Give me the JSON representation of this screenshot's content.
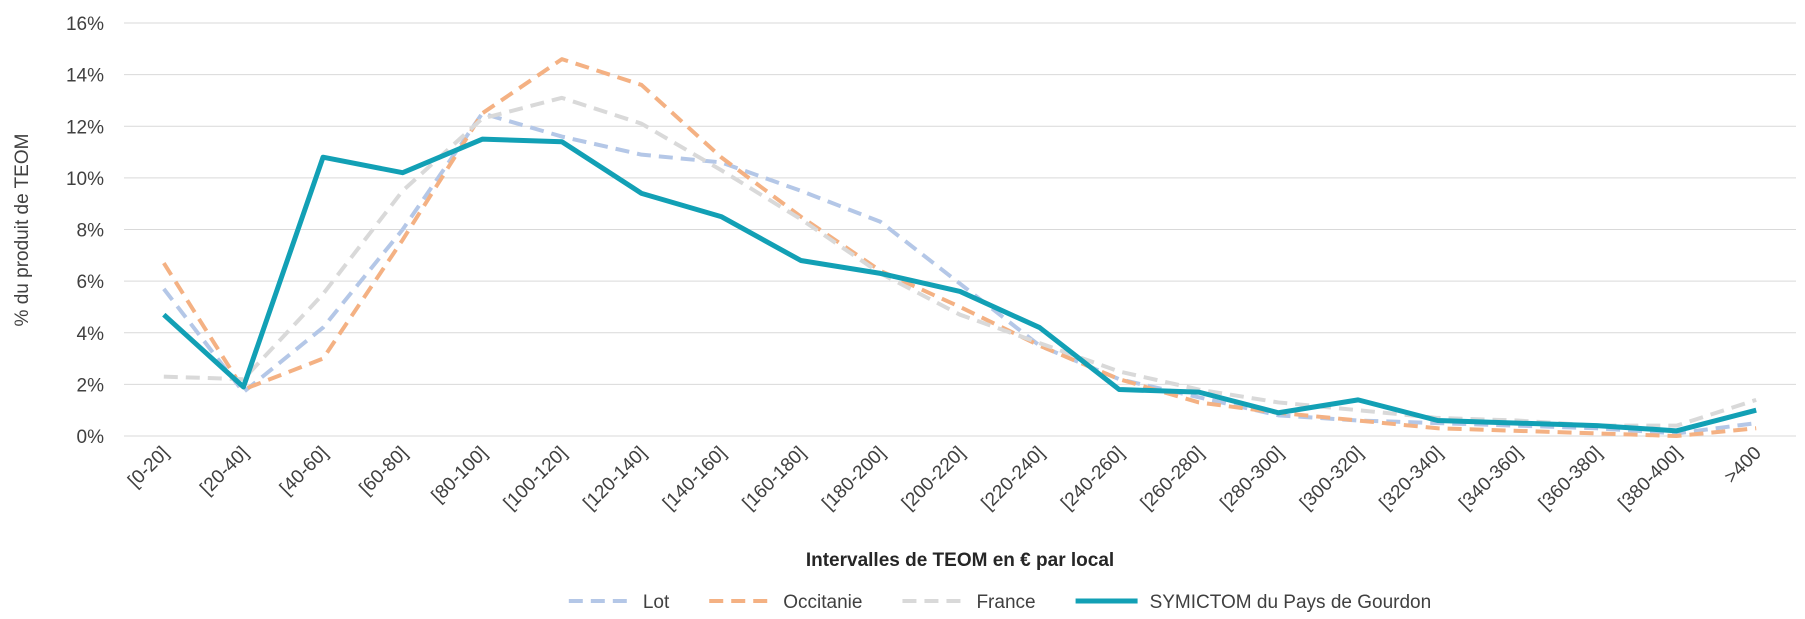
{
  "chart_data": {
    "type": "line",
    "x_label": "Intervalles de TEOM en € par local",
    "y_label": "% du produit de TEOM",
    "categories": [
      "[0-20]",
      "[20-40]",
      "[40-60]",
      "[60-80]",
      "[80-100]",
      "[100-120]",
      "[120-140]",
      "[140-160]",
      "[160-180]",
      "[180-200]",
      "[200-220]",
      "[220-240]",
      "[240-260]",
      "[260-280]",
      "[280-300]",
      "[300-320]",
      "[320-340]",
      "[340-360]",
      "[360-380]",
      "[380-400]",
      ">400"
    ],
    "series": [
      {
        "name": "Lot",
        "color": "#b4c7e7",
        "style": "dashed",
        "values": [
          5.7,
          1.7,
          4.2,
          8.0,
          12.5,
          11.6,
          10.9,
          10.6,
          9.5,
          8.3,
          5.9,
          3.5,
          2.2,
          1.5,
          0.8,
          0.6,
          0.5,
          0.4,
          0.3,
          0.1,
          0.5
        ]
      },
      {
        "name": "Occitanie",
        "color": "#f4b183",
        "style": "dashed",
        "values": [
          6.7,
          1.8,
          3.0,
          7.6,
          12.5,
          14.6,
          13.6,
          10.8,
          8.5,
          6.4,
          5.0,
          3.5,
          2.2,
          1.3,
          0.9,
          0.6,
          0.3,
          0.2,
          0.1,
          0.0,
          0.3
        ]
      },
      {
        "name": "France",
        "color": "#d9d9d9",
        "style": "dashed",
        "values": [
          2.3,
          2.2,
          5.5,
          9.5,
          12.3,
          13.1,
          12.1,
          10.3,
          8.4,
          6.3,
          4.7,
          3.6,
          2.5,
          1.8,
          1.3,
          1.0,
          0.7,
          0.6,
          0.4,
          0.4,
          1.4
        ]
      },
      {
        "name": "SYMICTOM du Pays de Gourdon",
        "color": "#12a0b5",
        "style": "solid",
        "values": [
          4.7,
          1.9,
          10.8,
          10.2,
          11.5,
          11.4,
          9.4,
          8.5,
          6.8,
          6.3,
          5.6,
          4.2,
          1.8,
          1.7,
          0.9,
          1.4,
          0.6,
          0.5,
          0.4,
          0.2,
          1.0
        ]
      }
    ],
    "ylim": [
      0,
      16
    ],
    "yticks": [
      {
        "value": 0,
        "label": "0%"
      },
      {
        "value": 2,
        "label": "2%"
      },
      {
        "value": 4,
        "label": "4%"
      },
      {
        "value": 6,
        "label": "6%"
      },
      {
        "value": 8,
        "label": "8%"
      },
      {
        "value": 10,
        "label": "10%"
      },
      {
        "value": 12,
        "label": "12%"
      },
      {
        "value": 14,
        "label": "14%"
      },
      {
        "value": 16,
        "label": "16%"
      }
    ],
    "grid": true,
    "legend": "bottom"
  }
}
